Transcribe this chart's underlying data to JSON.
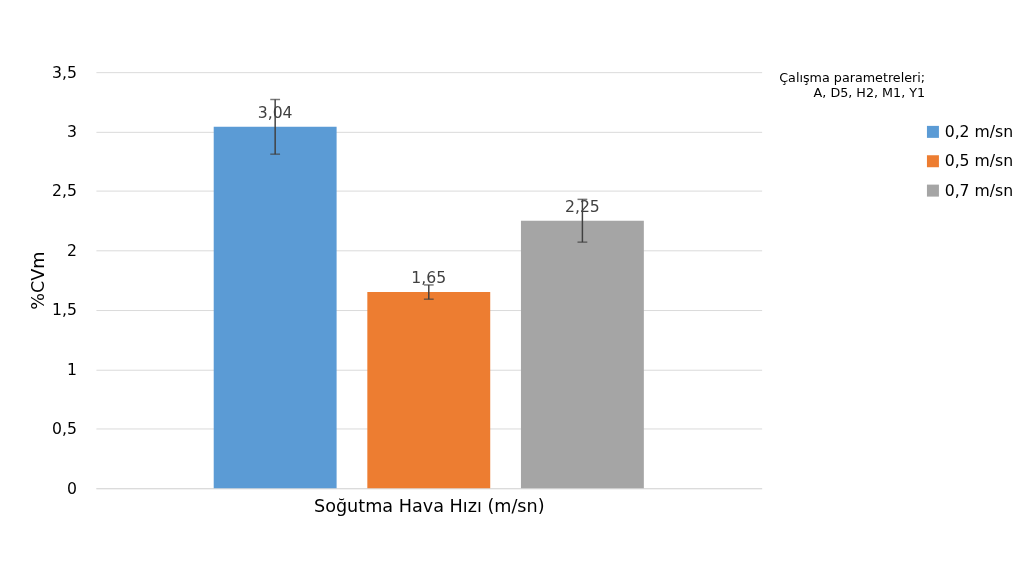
{
  "chart_data": {
    "type": "bar",
    "xlabel": "Soğutma Hava Hızı (m/sn)",
    "ylabel": "%CVm",
    "legend_title": "Çalışma parametreleri;\nA, D5, H2, M1, Y1",
    "categories": [
      null
    ],
    "series": [
      {
        "name": "0,2 m/sn",
        "color": "#5b9bd5",
        "values": [
          3.04
        ],
        "errors": [
          0.23
        ],
        "value_labels": [
          "3,04"
        ]
      },
      {
        "name": "0,5 m/sn",
        "color": "#ed7d31",
        "values": [
          1.65
        ],
        "errors": [
          0.06
        ],
        "value_labels": [
          "1,65"
        ]
      },
      {
        "name": "0,7 m/sn",
        "color": "#a5a5a5",
        "values": [
          2.25
        ],
        "errors": [
          0.18
        ],
        "value_labels": [
          "2,25"
        ]
      }
    ],
    "ylim": [
      0,
      3.5
    ],
    "yticks": [
      0,
      {
        "value": 0.5,
        "label": "0,5"
      },
      1,
      {
        "value": 1.5,
        "label": "1,5"
      },
      2,
      {
        "value": 2.5,
        "label": "2,5"
      },
      3,
      {
        "value": 3.5,
        "label": "3,5"
      }
    ],
    "grid": "y",
    "legend": "right"
  }
}
